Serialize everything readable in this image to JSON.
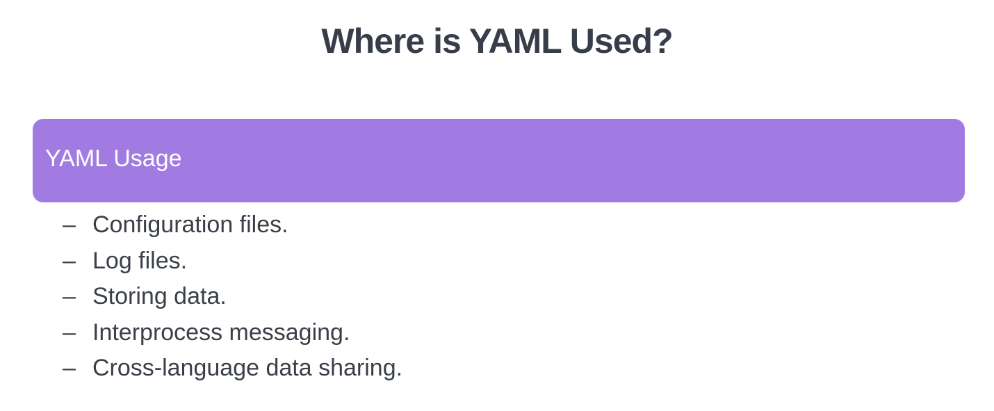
{
  "title": "Where is YAML Used?",
  "section": {
    "label": "YAML Usage",
    "color": "#a27be2"
  },
  "bullet_marker": "–",
  "items": [
    "Configuration files.",
    "Log files.",
    "Storing data.",
    "Interprocess messaging.",
    "Cross-language data sharing."
  ]
}
